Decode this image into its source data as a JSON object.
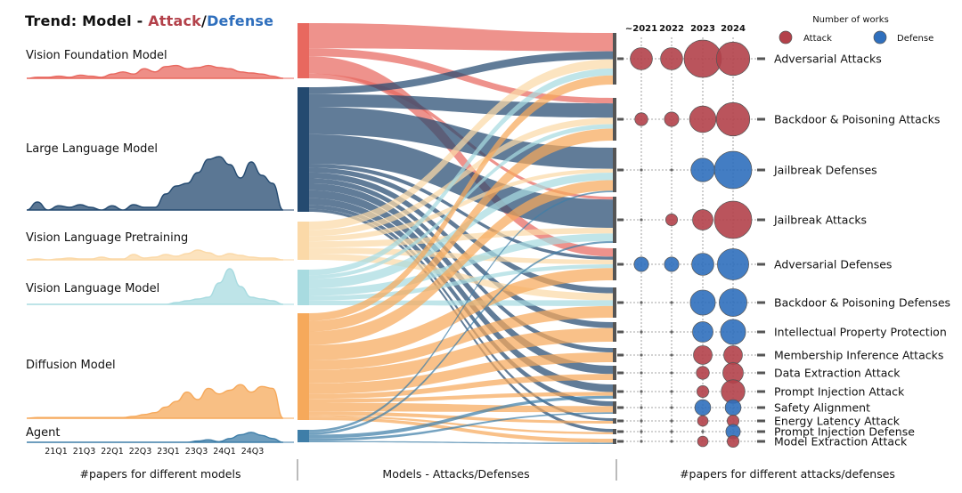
{
  "title": {
    "prefix": "Trend:",
    "model": "Model",
    "dash": " - ",
    "attack": "Attack",
    "slash": "/",
    "defense": "Defense"
  },
  "colors": {
    "attack": "#b3414a",
    "defense": "#2f6fbd",
    "vfm": "#e8685f",
    "llm": "#244a70",
    "vlp": "#fbd9a8",
    "vlm": "#a8dbe0",
    "dm": "#f6a95b",
    "agent": "#3f7ea8"
  },
  "chart_data": {
    "type": "sankey",
    "quarters": [
      "21Q1",
      "21Q3",
      "22Q1",
      "22Q3",
      "23Q1",
      "23Q3",
      "24Q1",
      "24Q3"
    ],
    "models": [
      {
        "name": "Vision Foundation Model",
        "key": "vfm",
        "trend": [
          0,
          0.05,
          0.05,
          0.1,
          0.05,
          0.15,
          0.1,
          0.05,
          0.2,
          0.3,
          0.2,
          0.45,
          0.3,
          0.55,
          0.6,
          0.45,
          0.5,
          0.6,
          0.5,
          0.45,
          0.3,
          0.25,
          0.2,
          0.1,
          0
        ]
      },
      {
        "name": "Large Language Model",
        "key": "llm",
        "trend": [
          0,
          0.15,
          0,
          0.08,
          0.05,
          0.1,
          0.05,
          0,
          0.08,
          0,
          0.1,
          0.05,
          0.05,
          0.3,
          0.45,
          0.5,
          0.7,
          0.95,
          1.0,
          0.85,
          0.6,
          0.9,
          0.65,
          0.5,
          0
        ]
      },
      {
        "name": "Vision Language Pretraining",
        "key": "vlp",
        "trend": [
          0,
          0.05,
          0,
          0.05,
          0.1,
          0.05,
          0.05,
          0.15,
          0.05,
          0.05,
          0.3,
          0.1,
          0.15,
          0.3,
          0.2,
          0.35,
          0.55,
          0.4,
          0.2,
          0.35,
          0.25,
          0.15,
          0.1,
          0.1,
          0
        ]
      },
      {
        "name": "Vision Language Model",
        "key": "vlm",
        "trend": [
          0,
          0,
          0,
          0,
          0,
          0,
          0,
          0,
          0,
          0,
          0,
          0,
          0,
          0,
          0.05,
          0.1,
          0.15,
          0.2,
          0.6,
          1.0,
          0.5,
          0.2,
          0.15,
          0.1,
          0
        ]
      },
      {
        "name": "Diffusion Model",
        "key": "dm",
        "trend": [
          0,
          0.02,
          0.02,
          0.02,
          0.02,
          0.02,
          0.02,
          0.02,
          0.02,
          0.02,
          0.05,
          0.1,
          0.15,
          0.3,
          0.45,
          0.7,
          0.5,
          0.8,
          0.65,
          0.75,
          0.9,
          0.7,
          0.85,
          0.8,
          0
        ]
      },
      {
        "name": "Agent",
        "key": "agent",
        "trend": [
          0,
          0,
          0,
          0,
          0,
          0,
          0,
          0,
          0,
          0,
          0,
          0,
          0,
          0,
          0,
          0,
          0.1,
          0.2,
          0.05,
          0.3,
          0.6,
          0.8,
          0.55,
          0.3,
          0
        ]
      }
    ],
    "categories": [
      {
        "name": "Adversarial Attacks",
        "type": "attack",
        "sizes": [
          0.35,
          0.35,
          1.0,
          0.8
        ]
      },
      {
        "name": "Backdoor & Poisoning Attacks",
        "type": "attack",
        "sizes": [
          0.12,
          0.15,
          0.5,
          0.8
        ]
      },
      {
        "name": "Jailbreak Defenses",
        "type": "defense",
        "sizes": [
          0,
          0,
          0.4,
          1.0
        ]
      },
      {
        "name": "Jailbreak Attacks",
        "type": "attack",
        "sizes": [
          0,
          0.1,
          0.3,
          1.0
        ]
      },
      {
        "name": "Adversarial Defenses",
        "type": "defense",
        "sizes": [
          0.15,
          0.15,
          0.35,
          0.7
        ]
      },
      {
        "name": "Backdoor & Poisoning Defenses",
        "type": "defense",
        "sizes": [
          0,
          0,
          0.45,
          0.55
        ]
      },
      {
        "name": "Intellectual Property Protection",
        "type": "defense",
        "sizes": [
          0,
          0,
          0.3,
          0.45
        ]
      },
      {
        "name": "Membership Inference Attacks",
        "type": "attack",
        "sizes": [
          0,
          0,
          0.25,
          0.25
        ]
      },
      {
        "name": "Data Extraction Attack",
        "type": "attack",
        "sizes": [
          0,
          0,
          0.12,
          0.3
        ]
      },
      {
        "name": "Prompt Injection Attack",
        "type": "attack",
        "sizes": [
          0,
          0,
          0.1,
          0.4
        ]
      },
      {
        "name": "Safety Alignment",
        "type": "defense",
        "sizes": [
          0,
          0,
          0.18,
          0.18
        ]
      },
      {
        "name": "Energy Latency Attack",
        "type": "attack",
        "sizes": [
          0,
          0,
          0.08,
          0.1
        ]
      },
      {
        "name": "Prompt Injection Defense",
        "type": "defense",
        "sizes": [
          0,
          0,
          0,
          0.15
        ]
      },
      {
        "name": "Model Extraction Attack",
        "type": "attack",
        "sizes": [
          0,
          0,
          0.08,
          0.1
        ]
      }
    ],
    "flows": [
      {
        "from": "vfm",
        "to": 0,
        "w": 16
      },
      {
        "from": "vfm",
        "to": 1,
        "w": 5
      },
      {
        "from": "vfm",
        "to": 4,
        "w": 11
      },
      {
        "from": "vfm",
        "to": 3,
        "w": 3
      },
      {
        "from": "llm",
        "to": 0,
        "w": 7
      },
      {
        "from": "llm",
        "to": 1,
        "w": 13
      },
      {
        "from": "llm",
        "to": 2,
        "w": 28
      },
      {
        "from": "llm",
        "to": 3,
        "w": 30
      },
      {
        "from": "llm",
        "to": 4,
        "w": 4
      },
      {
        "from": "llm",
        "to": 5,
        "w": 5
      },
      {
        "from": "llm",
        "to": 6,
        "w": 6
      },
      {
        "from": "llm",
        "to": 7,
        "w": 5
      },
      {
        "from": "llm",
        "to": 8,
        "w": 7
      },
      {
        "from": "llm",
        "to": 9,
        "w": 8
      },
      {
        "from": "llm",
        "to": 10,
        "w": 7
      },
      {
        "from": "llm",
        "to": 11,
        "w": 4
      },
      {
        "from": "llm",
        "to": 12,
        "w": 3
      },
      {
        "from": "vlp",
        "to": 0,
        "w": 8
      },
      {
        "from": "vlp",
        "to": 1,
        "w": 6
      },
      {
        "from": "vlp",
        "to": 2,
        "w": 5
      },
      {
        "from": "vlp",
        "to": 3,
        "w": 6
      },
      {
        "from": "vlp",
        "to": 4,
        "w": 6
      },
      {
        "from": "vlp",
        "to": 5,
        "w": 6
      },
      {
        "from": "vlm",
        "to": 0,
        "w": 6
      },
      {
        "from": "vlm",
        "to": 1,
        "w": 4
      },
      {
        "from": "vlm",
        "to": 2,
        "w": 10
      },
      {
        "from": "vlm",
        "to": 3,
        "w": 8
      },
      {
        "from": "vlm",
        "to": 4,
        "w": 5
      },
      {
        "from": "vlm",
        "to": 5,
        "w": 5
      },
      {
        "from": "dm",
        "to": 0,
        "w": 8
      },
      {
        "from": "dm",
        "to": 1,
        "w": 11
      },
      {
        "from": "dm",
        "to": 2,
        "w": 14
      },
      {
        "from": "dm",
        "to": 4,
        "w": 16
      },
      {
        "from": "dm",
        "to": 5,
        "w": 10
      },
      {
        "from": "dm",
        "to": 6,
        "w": 14
      },
      {
        "from": "dm",
        "to": 7,
        "w": 11
      },
      {
        "from": "dm",
        "to": 8,
        "w": 5
      },
      {
        "from": "dm",
        "to": 9,
        "w": 4
      },
      {
        "from": "dm",
        "to": 10,
        "w": 9
      },
      {
        "from": "dm",
        "to": 11,
        "w": 4
      },
      {
        "from": "dm",
        "to": 12,
        "w": 2
      },
      {
        "from": "dm",
        "to": 13,
        "w": 3
      },
      {
        "from": "agent",
        "to": 2,
        "w": 2
      },
      {
        "from": "agent",
        "to": 3,
        "w": 2
      },
      {
        "from": "agent",
        "to": 9,
        "w": 3
      },
      {
        "from": "agent",
        "to": 10,
        "w": 2
      },
      {
        "from": "agent",
        "to": 13,
        "w": 1
      }
    ],
    "years": [
      "~2021",
      "2022",
      "2023",
      "2024"
    ],
    "legend": {
      "title": "Number of works",
      "attack": "Attack",
      "defense": "Defense"
    },
    "footers": [
      "#papers for different models",
      "Models - Attacks/Defenses",
      "#papers for different attacks/defenses"
    ]
  }
}
